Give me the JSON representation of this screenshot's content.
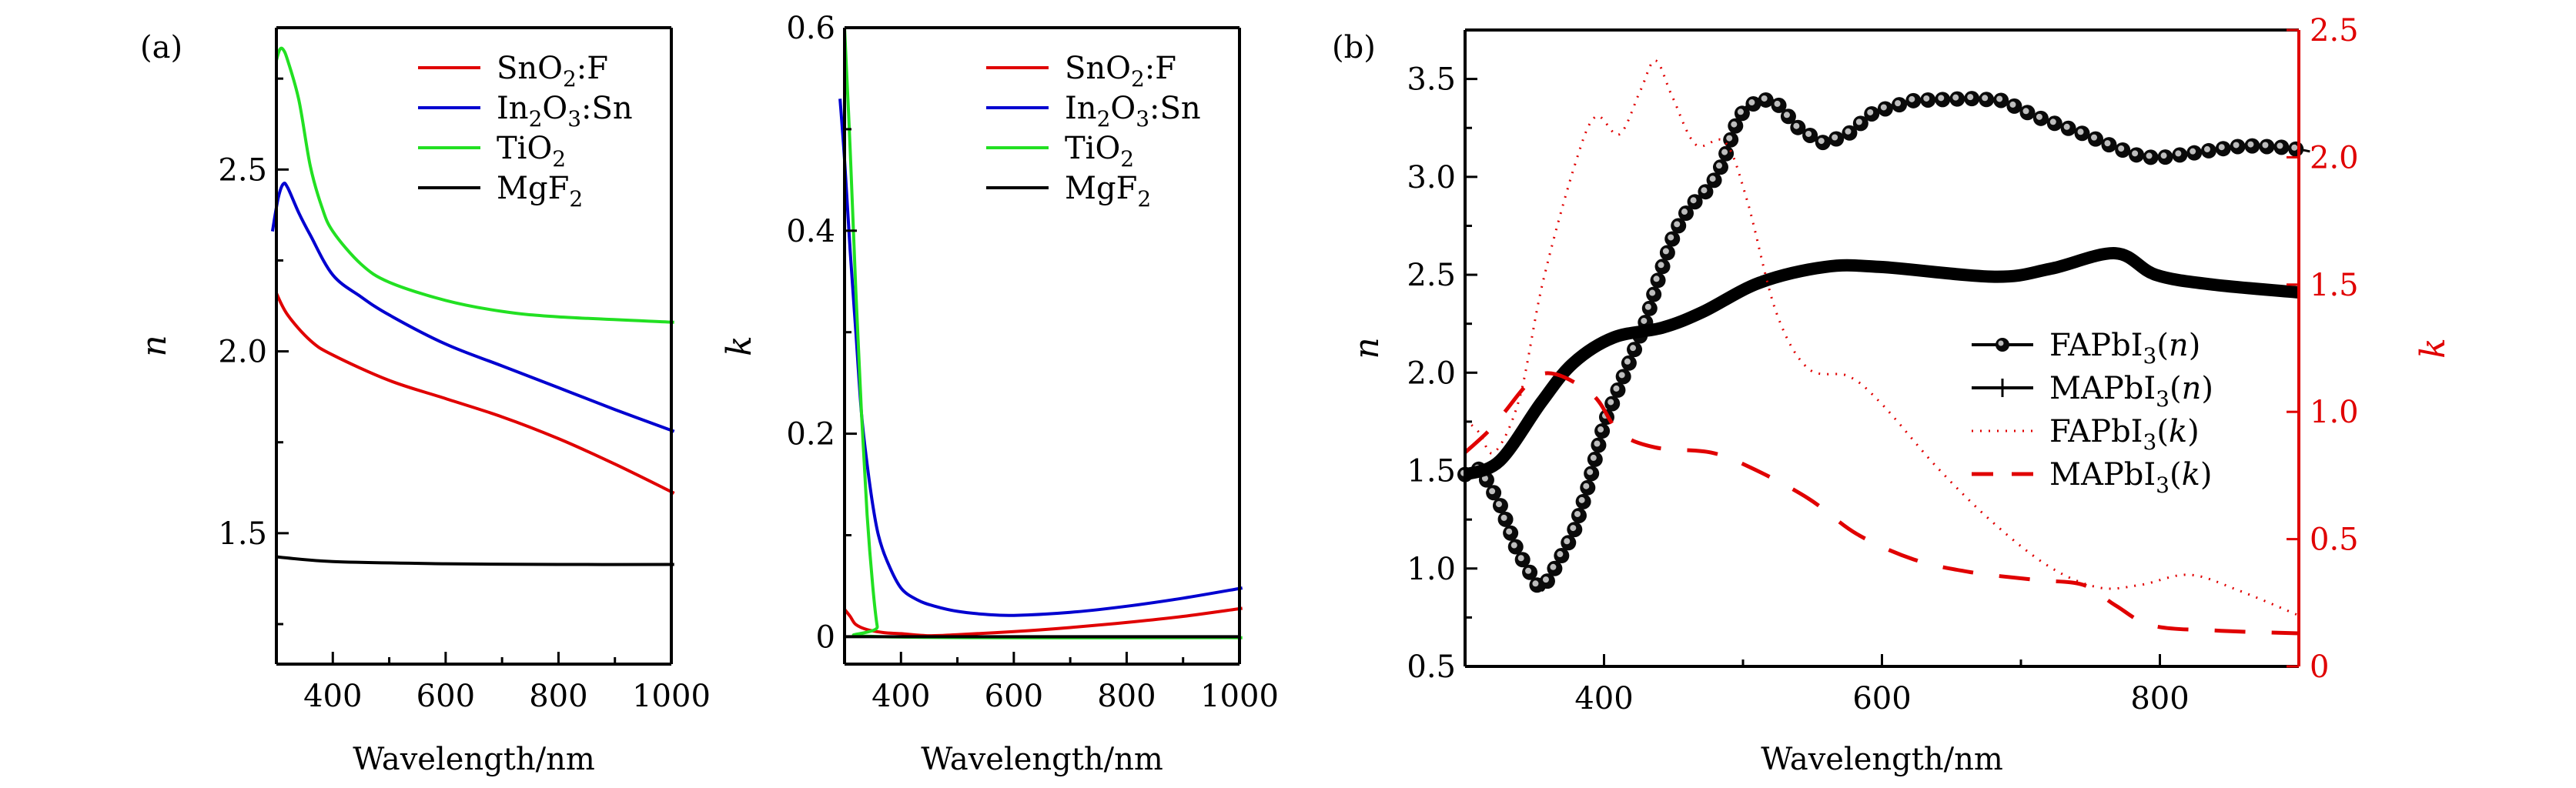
{
  "figure": {
    "panel_a_label": "(a)",
    "panel_b_label": "(b)"
  },
  "chart_data": [
    {
      "id": "a_n",
      "type": "line",
      "panel": "(a)",
      "title": "",
      "xlabel": "Wavelength/nm",
      "ylabel": "n",
      "xlim": [
        300,
        1000
      ],
      "ylim": [
        1.14,
        2.89
      ],
      "xticks": [
        400,
        600,
        800,
        1000
      ],
      "xminor": [
        500,
        700,
        900
      ],
      "yticks": [
        1.5,
        2.0,
        2.5
      ],
      "yminor": [
        1.25,
        1.75,
        2.25,
        2.75
      ],
      "ytick_labels": [
        "1.5",
        "2.0",
        "2.5"
      ],
      "xtick_labels": [
        "400",
        "600",
        "800",
        "1000"
      ],
      "grid": false,
      "legend_position": "top-right",
      "series": [
        {
          "name": "SnO2:F",
          "label_main": "SnO",
          "label_sub": "2",
          "label_tail": ":F",
          "color": "#e00000",
          "style": "solid",
          "x": [
            300,
            320,
            360,
            400,
            500,
            600,
            700,
            800,
            900,
            1005
          ],
          "y": [
            2.16,
            2.1,
            2.03,
            1.99,
            1.92,
            1.87,
            1.82,
            1.76,
            1.69,
            1.61
          ]
        },
        {
          "name": "In2O3:Sn",
          "label_main": "In",
          "label_sub": "2",
          "label_mid": "O",
          "label_sub2": "3",
          "label_tail": ":Sn",
          "color": "#0000d0",
          "style": "solid",
          "x": [
            293,
            303,
            312,
            320,
            340,
            360,
            400,
            450,
            500,
            600,
            700,
            800,
            900,
            1005
          ],
          "y": [
            2.33,
            2.42,
            2.46,
            2.45,
            2.38,
            2.32,
            2.21,
            2.15,
            2.1,
            2.02,
            1.96,
            1.9,
            1.84,
            1.78
          ]
        },
        {
          "name": "TiO2",
          "label_main": "TiO",
          "label_sub": "2",
          "label_tail": "",
          "color": "#22e022",
          "style": "solid",
          "x": [
            300,
            306,
            312,
            320,
            340,
            360,
            380,
            400,
            450,
            500,
            600,
            700,
            800,
            1005
          ],
          "y": [
            2.8,
            2.83,
            2.83,
            2.8,
            2.69,
            2.51,
            2.4,
            2.33,
            2.24,
            2.19,
            2.14,
            2.11,
            2.095,
            2.08
          ]
        },
        {
          "name": "MgF2",
          "label_main": "MgF",
          "label_sub": "2",
          "label_tail": "",
          "color": "#000000",
          "style": "solid",
          "x": [
            300,
            400,
            600,
            800,
            1005
          ],
          "y": [
            1.435,
            1.422,
            1.416,
            1.414,
            1.414
          ]
        }
      ]
    },
    {
      "id": "a_k",
      "type": "line",
      "panel": "(a)",
      "title": "",
      "xlabel": "Wavelength/nm",
      "ylabel": "k",
      "xlim": [
        300,
        1000
      ],
      "ylim": [
        -0.027,
        0.6
      ],
      "xticks": [
        400,
        600,
        800,
        1000
      ],
      "xminor": [
        500,
        700,
        900
      ],
      "yticks": [
        0,
        0.2,
        0.4,
        0.6
      ],
      "yminor": [
        0.1,
        0.3,
        0.5
      ],
      "ytick_labels": [
        "0",
        "0.2",
        "0.4",
        "0.6"
      ],
      "xtick_labels": [
        "400",
        "600",
        "800",
        "1000"
      ],
      "grid": false,
      "legend_position": "top-right",
      "series": [
        {
          "name": "SnO2:F",
          "label_main": "SnO",
          "label_sub": "2",
          "label_tail": ":F",
          "color": "#e00000",
          "style": "solid",
          "x": [
            300,
            310,
            320,
            340,
            370,
            400,
            450,
            500,
            600,
            700,
            800,
            900,
            1005
          ],
          "y": [
            0.027,
            0.02,
            0.012,
            0.007,
            0.004,
            0.003,
            0.001,
            0.002,
            0.005,
            0.009,
            0.014,
            0.02,
            0.028
          ]
        },
        {
          "name": "In2O3:Sn",
          "label_main": "In",
          "label_sub": "2",
          "label_mid": "O",
          "label_sub2": "3",
          "label_tail": ":Sn",
          "color": "#0000d0",
          "style": "solid",
          "x": [
            292,
            300,
            310,
            320,
            330,
            340,
            350,
            360,
            375,
            400,
            430,
            460,
            500,
            550,
            600,
            700,
            800,
            900,
            1005
          ],
          "y": [
            0.53,
            0.47,
            0.38,
            0.3,
            0.22,
            0.17,
            0.13,
            0.1,
            0.075,
            0.048,
            0.036,
            0.03,
            0.025,
            0.022,
            0.021,
            0.024,
            0.03,
            0.038,
            0.048
          ]
        },
        {
          "name": "TiO2",
          "label_main": "TiO",
          "label_sub": "2",
          "label_tail": "",
          "color": "#22e022",
          "style": "solid",
          "x": [
            300,
            310,
            320,
            330,
            340,
            350,
            358,
            365,
            1005
          ],
          "y": [
            0.6,
            0.48,
            0.34,
            0.22,
            0.12,
            0.05,
            0.01,
            0.0,
            -0.001
          ]
        },
        {
          "name": "MgF2",
          "label_main": "MgF",
          "label_sub": "2",
          "label_tail": "",
          "color": "#000000",
          "style": "solid",
          "x": [
            300,
            1000
          ],
          "y": [
            0.0,
            0.0
          ]
        }
      ]
    },
    {
      "id": "b",
      "type": "line",
      "panel": "(b)",
      "title": "",
      "xlabel": "Wavelength/nm",
      "ylabel": "n",
      "ylabel_right": "k",
      "xlim": [
        300,
        900
      ],
      "ylim": [
        0.5,
        3.75
      ],
      "ylim_right": [
        0,
        2.5
      ],
      "xticks": [
        400,
        600,
        800
      ],
      "xminor": [
        500,
        700
      ],
      "yticks": [
        0.5,
        1.0,
        1.5,
        2.0,
        2.5,
        3.0,
        3.5
      ],
      "yminor": [
        0.75,
        1.25,
        1.75,
        2.25,
        2.75,
        3.25
      ],
      "ytick_labels": [
        "0.5",
        "1.0",
        "1.5",
        "2.0",
        "2.5",
        "3.0",
        "3.5"
      ],
      "yticks_right": [
        0,
        0.5,
        1.0,
        1.5,
        2.0,
        2.5
      ],
      "ytick_labels_right": [
        "0",
        "0.5",
        "1.0",
        "1.5",
        "2.0",
        "2.5"
      ],
      "xtick_labels": [
        "400",
        "600",
        "800"
      ],
      "grid": false,
      "legend_position": "center-right",
      "right_axis_color": "#e00000",
      "series": [
        {
          "name": "FAPbI3(n)",
          "label_main": "FAPbI",
          "label_sub": "3",
          "label_paren": "n",
          "color": "#000000",
          "style": "sphere-markers",
          "axis": "left",
          "x": [
            300,
            311,
            325,
            337,
            353,
            360,
            378,
            389,
            400,
            418,
            430,
            440,
            451,
            462,
            477,
            486,
            497,
            512,
            524,
            541,
            559,
            576,
            594,
            623,
            664,
            687,
            710,
            745,
            768,
            788,
            803,
            832,
            861,
            891,
            908
          ],
          "y": [
            1.48,
            1.51,
            1.33,
            1.1,
            0.9,
            0.94,
            1.18,
            1.43,
            1.74,
            2.05,
            2.26,
            2.5,
            2.72,
            2.85,
            2.95,
            3.08,
            3.31,
            3.4,
            3.38,
            3.24,
            3.17,
            3.22,
            3.33,
            3.39,
            3.4,
            3.39,
            3.31,
            3.22,
            3.15,
            3.1,
            3.1,
            3.13,
            3.16,
            3.15,
            3.13
          ]
        },
        {
          "name": "MAPbI3(n)",
          "label_main": "MAPbI",
          "label_sub": "3",
          "label_paren": "n",
          "color": "#000000",
          "style": "thick-cross",
          "axis": "left",
          "x": [
            300,
            325,
            355,
            378,
            407,
            442,
            471,
            512,
            559,
            599,
            681,
            721,
            768,
            797,
            838,
            900
          ],
          "y": [
            1.48,
            1.55,
            1.85,
            2.05,
            2.18,
            2.23,
            2.31,
            2.46,
            2.54,
            2.54,
            2.49,
            2.53,
            2.61,
            2.5,
            2.45,
            2.41
          ]
        },
        {
          "name": "FAPbI3(k)",
          "label_main": "FAPbI",
          "label_sub": "3",
          "label_paren": "k",
          "color": "#e00000",
          "style": "dotted",
          "axis": "right",
          "x": [
            300,
            310,
            321,
            339,
            356,
            379,
            394,
            411,
            426,
            437,
            449,
            466,
            487,
            503,
            524,
            547,
            576,
            600,
            640,
            681,
            721,
            756,
            786,
            821,
            856,
            900
          ],
          "y": [
            0.97,
            0.92,
            0.84,
            1.05,
            1.51,
            1.97,
            2.16,
            2.09,
            2.26,
            2.38,
            2.24,
            2.05,
            2.06,
            1.83,
            1.39,
            1.17,
            1.14,
            1.03,
            0.78,
            0.56,
            0.39,
            0.31,
            0.32,
            0.36,
            0.3,
            0.2
          ]
        },
        {
          "name": "MAPbI3(k)",
          "label_main": "MAPbI",
          "label_sub": "3",
          "label_paren": "k",
          "color": "#e00000",
          "style": "dashed",
          "axis": "right",
          "x": [
            300,
            316,
            327,
            356,
            391,
            411,
            437,
            477,
            506,
            547,
            582,
            623,
            664,
            710,
            745,
            768,
            795,
            844,
            900
          ],
          "y": [
            0.84,
            0.92,
            0.99,
            1.15,
            1.07,
            0.92,
            0.86,
            0.84,
            0.78,
            0.66,
            0.52,
            0.42,
            0.37,
            0.34,
            0.32,
            0.24,
            0.16,
            0.14,
            0.13
          ]
        }
      ]
    }
  ]
}
